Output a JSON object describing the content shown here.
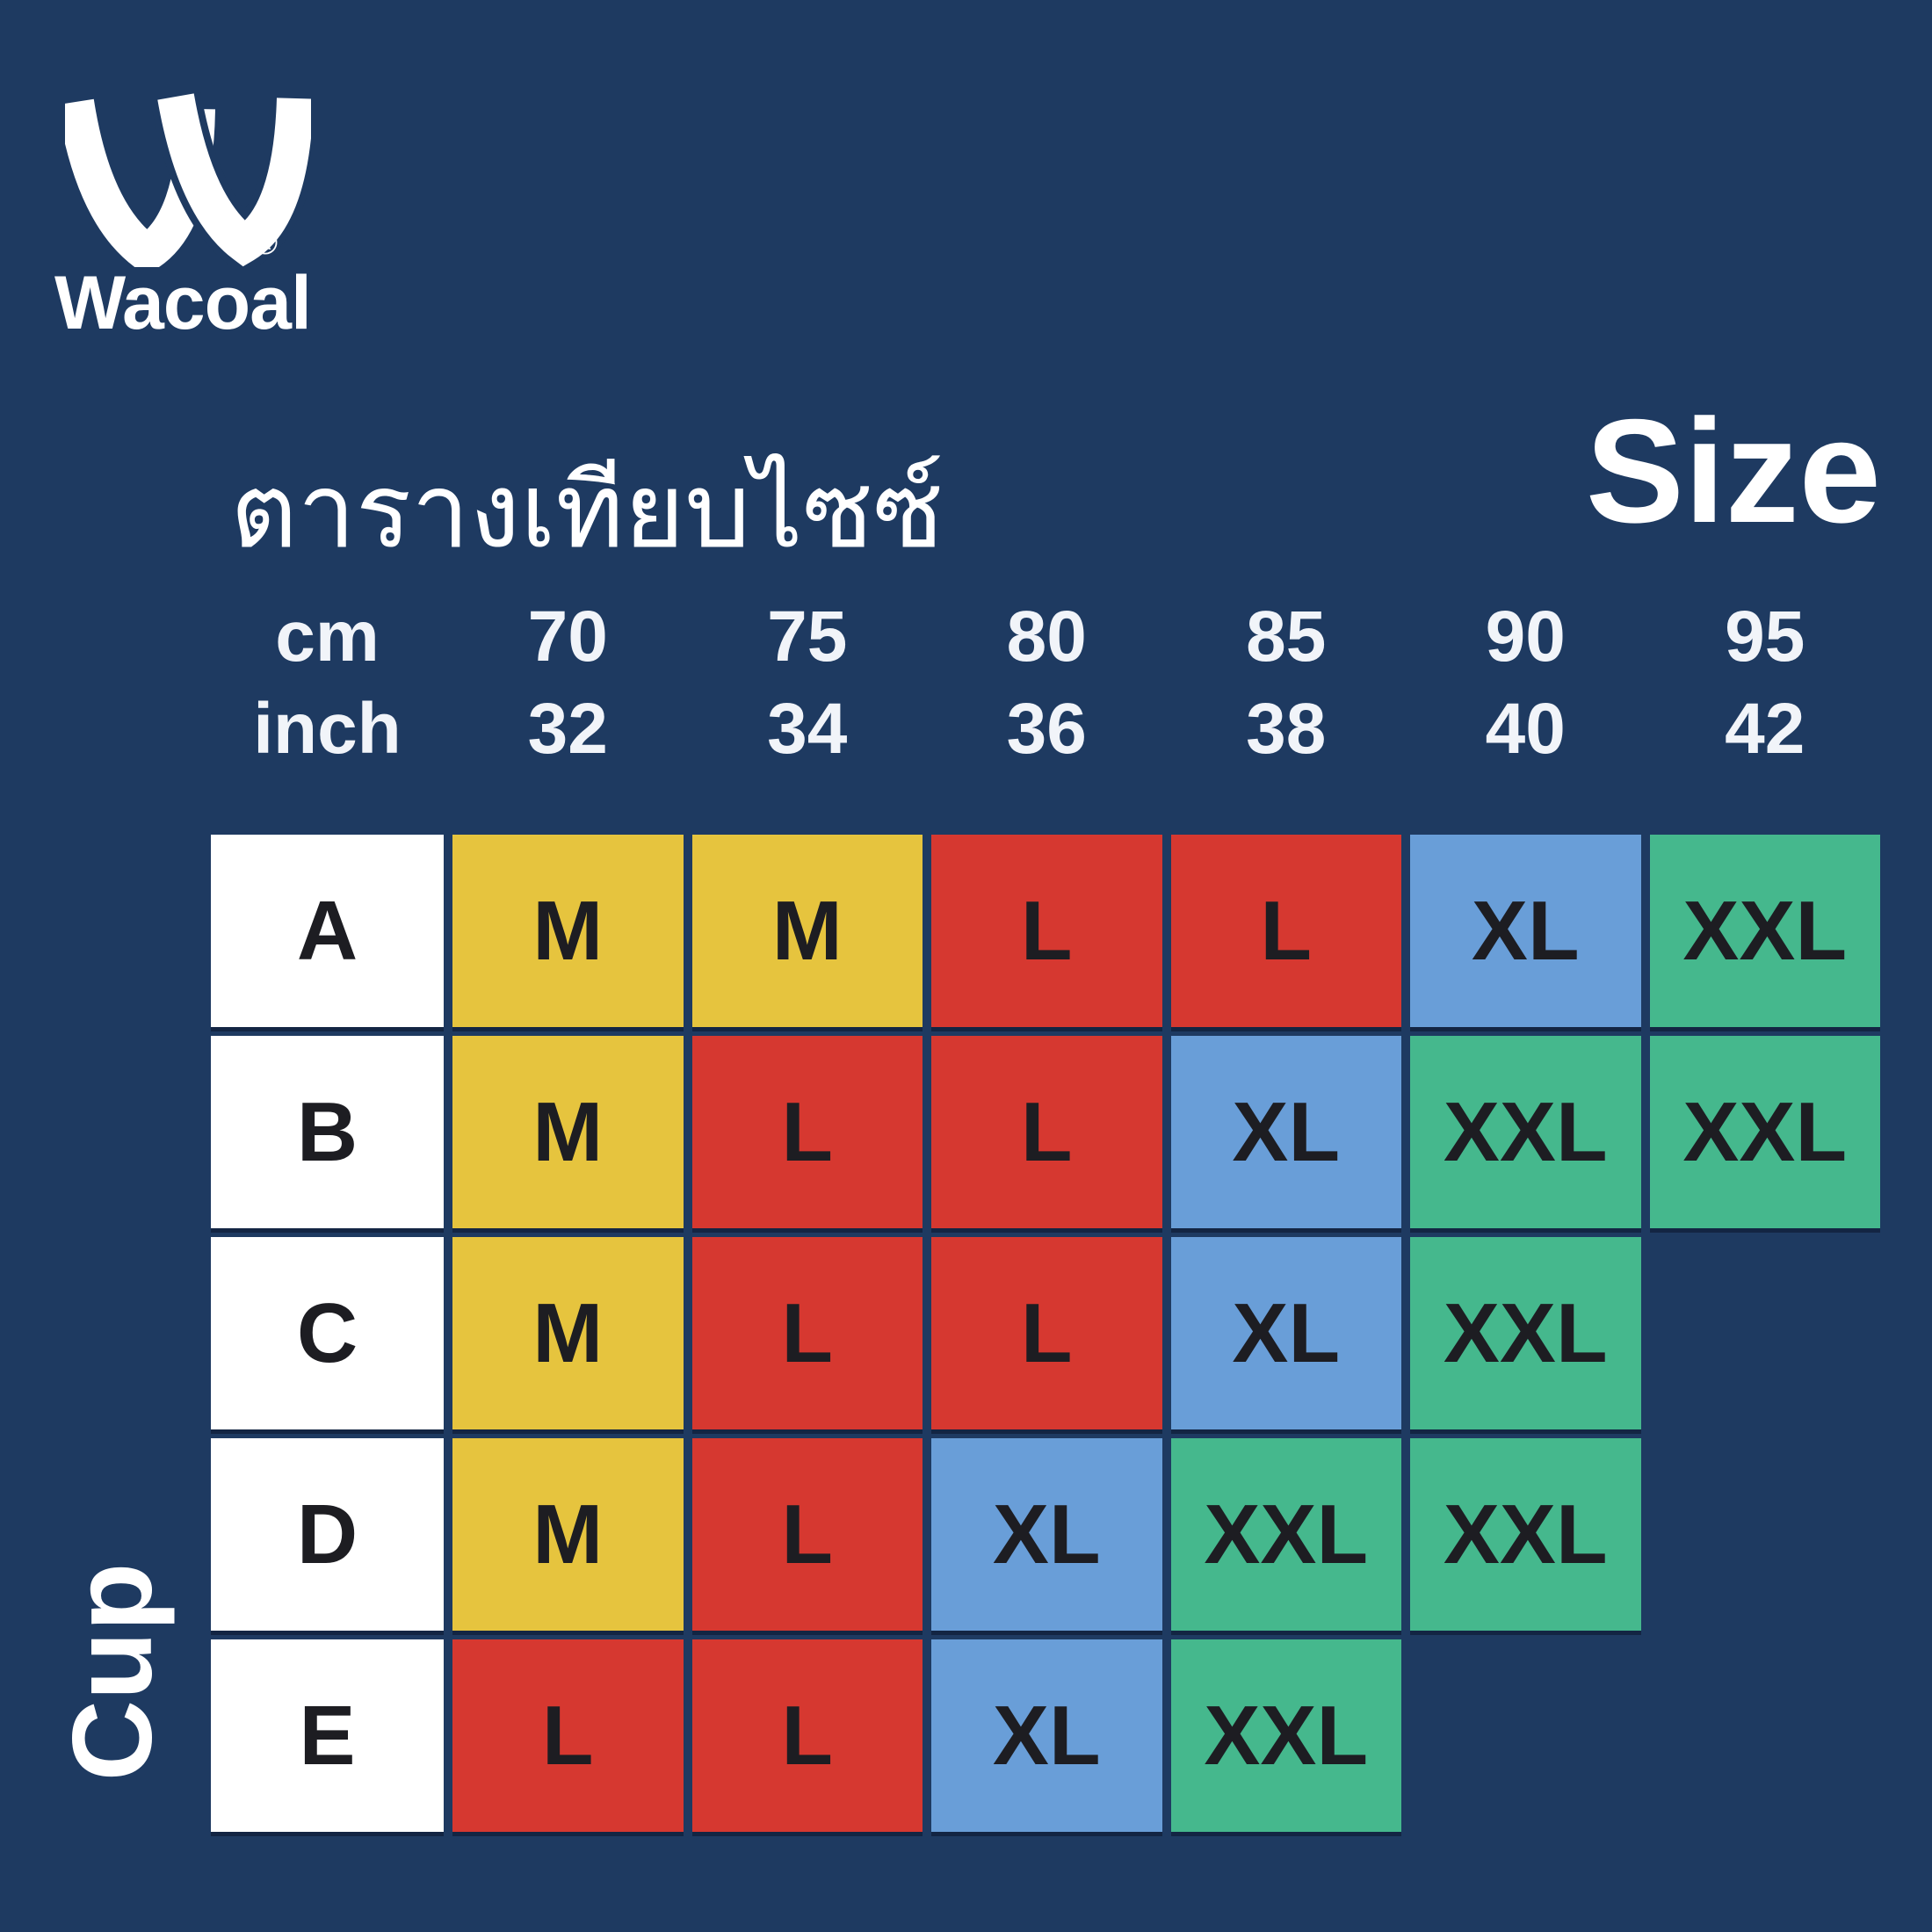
{
  "brand": {
    "wordmark": "Wacoal",
    "registered_mark": "®"
  },
  "axis": {
    "cm_label": "cm",
    "inch_label": "inch"
  },
  "colors": {
    "background": "#1e3a61",
    "heading_text": "#ffffff",
    "cell_text": "#1d1d22",
    "cup_column": "#ffffff"
  },
  "chart_data": {
    "type": "table",
    "title_thai": "ตารางเทียบไซซ์",
    "title_english": "Size",
    "row_header": "Cup",
    "columns_cm": [
      "70",
      "75",
      "80",
      "85",
      "90",
      "95"
    ],
    "columns_inch": [
      "32",
      "34",
      "36",
      "38",
      "40",
      "42"
    ],
    "size_colors": {
      "M": "#e6c43e",
      "L": "#d63830",
      "XL": "#699ed8",
      "XXL": "#45b88d"
    },
    "rows": [
      {
        "cup": "A",
        "sizes": [
          "M",
          "M",
          "L",
          "L",
          "XL",
          "XXL"
        ]
      },
      {
        "cup": "B",
        "sizes": [
          "M",
          "L",
          "L",
          "XL",
          "XXL",
          "XXL"
        ]
      },
      {
        "cup": "C",
        "sizes": [
          "M",
          "L",
          "L",
          "XL",
          "XXL",
          null
        ]
      },
      {
        "cup": "D",
        "sizes": [
          "M",
          "L",
          "XL",
          "XXL",
          "XXL",
          null
        ]
      },
      {
        "cup": "E",
        "sizes": [
          "L",
          "L",
          "XL",
          "XXL",
          null,
          null
        ]
      }
    ]
  }
}
